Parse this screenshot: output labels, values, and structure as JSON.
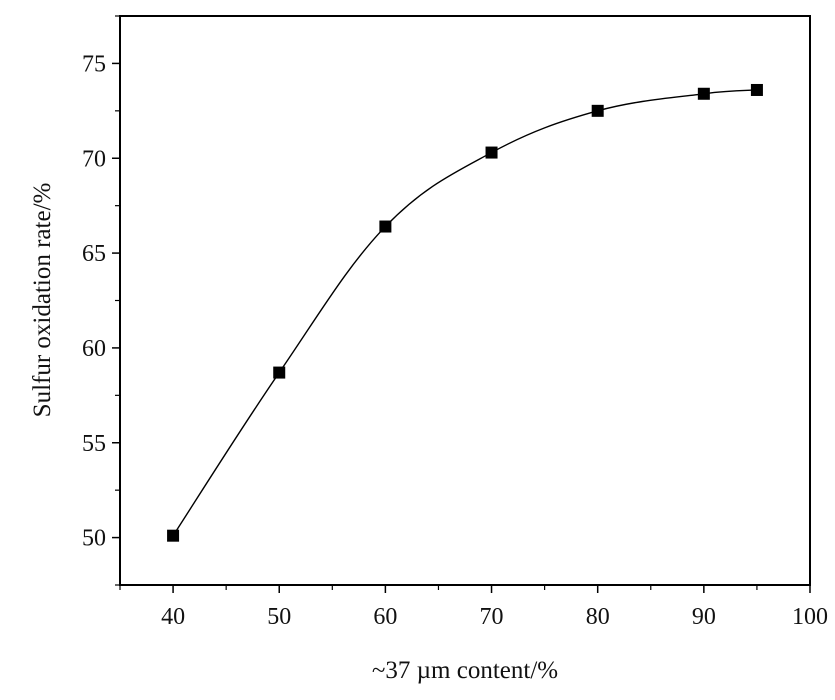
{
  "chart_data": {
    "type": "line",
    "xlabel": "~37  µm content/%",
    "ylabel": "Sulfur oxidation rate/%",
    "xlim": [
      35,
      100
    ],
    "ylim": [
      47.5,
      77.5
    ],
    "x_ticks": [
      40,
      50,
      60,
      70,
      80,
      90,
      100
    ],
    "y_ticks": [
      50,
      55,
      60,
      65,
      70,
      75
    ],
    "grid": false,
    "series": [
      {
        "x": [
          40,
          50,
          60,
          70,
          80,
          90,
          95
        ],
        "values": [
          50.1,
          58.7,
          66.4,
          70.3,
          72.5,
          73.4,
          73.6
        ],
        "marker": "square",
        "color": "#000000"
      }
    ]
  }
}
